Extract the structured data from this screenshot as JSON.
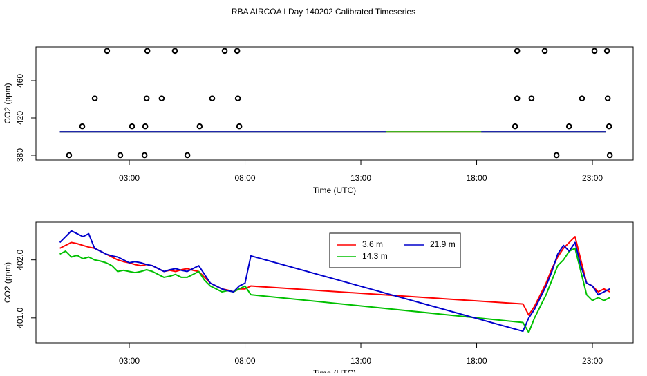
{
  "chart_data": [
    {
      "type": "line",
      "title": "RBA AIRCOA I  Day 140202  Calibrated Timeseries",
      "x_label": "Time (UTC)",
      "y_label": "CO2 (ppm)",
      "xlim": [
        -1.03,
        24.76
      ],
      "ylim": [
        374.8,
        496.3
      ],
      "xticks": [
        {
          "value": 3,
          "label": "03:00"
        },
        {
          "value": 8,
          "label": "08:00"
        },
        {
          "value": 13,
          "label": "13:00"
        },
        {
          "value": 18,
          "label": "18:00"
        },
        {
          "value": 23,
          "label": "23:00"
        }
      ],
      "yticks": [
        380,
        420,
        460
      ],
      "series": [
        {
          "color": "#ff0000",
          "x": [
            0,
            23.57
          ],
          "values": [
            405,
            405
          ]
        },
        {
          "color": "#00c000",
          "x": [
            0,
            23.57
          ],
          "values": [
            405,
            405
          ]
        },
        {
          "color": "#0000cc",
          "x": [
            0,
            14.1,
            14.2,
            18.2,
            23.57
          ],
          "values": [
            405,
            405,
            null,
            405,
            405
          ]
        }
      ],
      "points": {
        "color": "#000000",
        "x": [
          2.04,
          3.78,
          4.97,
          7.12,
          7.66,
          19.75,
          20.94,
          23.09,
          23.63,
          1.51,
          3.75,
          4.4,
          6.58,
          7.69,
          19.75,
          20.37,
          22.55,
          23.66,
          0.97,
          3.12,
          3.69,
          6.04,
          7.75,
          19.66,
          21.99,
          23.72,
          0.4,
          2.61,
          3.66,
          5.51,
          21.45,
          23.75
        ],
        "values": [
          492,
          492,
          492,
          492,
          492,
          492,
          492,
          492,
          492,
          441,
          441,
          441,
          441,
          441,
          441,
          441,
          441,
          441,
          411,
          411,
          411,
          411,
          411,
          411,
          411,
          411,
          380,
          380,
          380,
          380,
          380,
          380
        ]
      }
    },
    {
      "type": "line",
      "x_label": "Time (UTC)",
      "y_label": "CO2 (ppm)",
      "xlim": [
        -1.03,
        24.76
      ],
      "ylim": [
        400.57,
        402.65
      ],
      "xticks": [
        {
          "value": 3,
          "label": "03:00"
        },
        {
          "value": 8,
          "label": "08:00"
        },
        {
          "value": 13,
          "label": "13:00"
        },
        {
          "value": 18,
          "label": "18:00"
        },
        {
          "value": 23,
          "label": "23:00"
        }
      ],
      "yticks": [
        {
          "value": 401,
          "label": "401.0"
        },
        {
          "value": 402,
          "label": "402.0"
        }
      ],
      "legend": "top",
      "x": [
        0,
        0.25,
        0.5,
        0.75,
        1,
        1.25,
        1.5,
        1.75,
        2,
        2.25,
        2.5,
        2.75,
        3,
        3.25,
        3.5,
        3.75,
        4,
        4.25,
        4.5,
        4.75,
        5,
        5.25,
        5.5,
        5.75,
        6,
        6.25,
        6.5,
        6.75,
        7,
        7.25,
        7.5,
        7.75,
        8,
        8.25,
        20,
        20.25,
        20.5,
        20.75,
        21,
        21.25,
        21.5,
        21.75,
        22,
        22.25,
        22.5,
        22.75,
        23,
        23.25,
        23.5,
        23.75
      ],
      "series": [
        {
          "name": "3.6 m",
          "color": "#ff0000",
          "values": [
            402.2,
            402.25,
            402.3,
            402.28,
            402.25,
            402.22,
            402.2,
            402.15,
            402.1,
            402.05,
            402.0,
            401.97,
            401.95,
            401.92,
            401.9,
            401.92,
            401.9,
            401.85,
            401.8,
            401.82,
            401.8,
            401.83,
            401.85,
            401.82,
            401.8,
            401.7,
            401.6,
            401.55,
            401.5,
            401.48,
            401.45,
            401.5,
            401.5,
            401.55,
            401.24,
            401.05,
            401.2,
            401.4,
            401.6,
            401.85,
            402.05,
            402.2,
            402.3,
            402.4,
            402.0,
            401.6,
            401.55,
            401.45,
            401.5,
            401.45
          ]
        },
        {
          "name": "14.3 m",
          "color": "#00c000",
          "values": [
            402.1,
            402.15,
            402.05,
            402.08,
            402.02,
            402.05,
            402.0,
            401.98,
            401.95,
            401.9,
            401.8,
            401.82,
            401.8,
            401.78,
            401.8,
            401.83,
            401.8,
            401.75,
            401.7,
            401.72,
            401.75,
            401.7,
            401.7,
            401.75,
            401.8,
            401.65,
            401.55,
            401.5,
            401.45,
            401.47,
            401.45,
            401.5,
            401.55,
            401.4,
            400.92,
            400.75,
            401.0,
            401.2,
            401.4,
            401.65,
            401.9,
            402.0,
            402.15,
            402.2,
            401.8,
            401.4,
            401.3,
            401.35,
            401.3,
            401.35
          ]
        },
        {
          "name": "21.9 m",
          "color": "#0000cc",
          "values": [
            402.3,
            402.4,
            402.5,
            402.45,
            402.4,
            402.45,
            402.2,
            402.15,
            402.1,
            402.07,
            402.05,
            402.0,
            401.95,
            401.97,
            401.95,
            401.92,
            401.9,
            401.85,
            401.8,
            401.83,
            401.85,
            401.82,
            401.8,
            401.85,
            401.9,
            401.75,
            401.6,
            401.55,
            401.5,
            401.47,
            401.45,
            401.55,
            401.6,
            402.07,
            400.77,
            401.0,
            401.15,
            401.35,
            401.55,
            401.8,
            402.1,
            402.25,
            402.15,
            402.3,
            401.9,
            401.6,
            401.55,
            401.4,
            401.45,
            401.5
          ]
        }
      ]
    }
  ]
}
